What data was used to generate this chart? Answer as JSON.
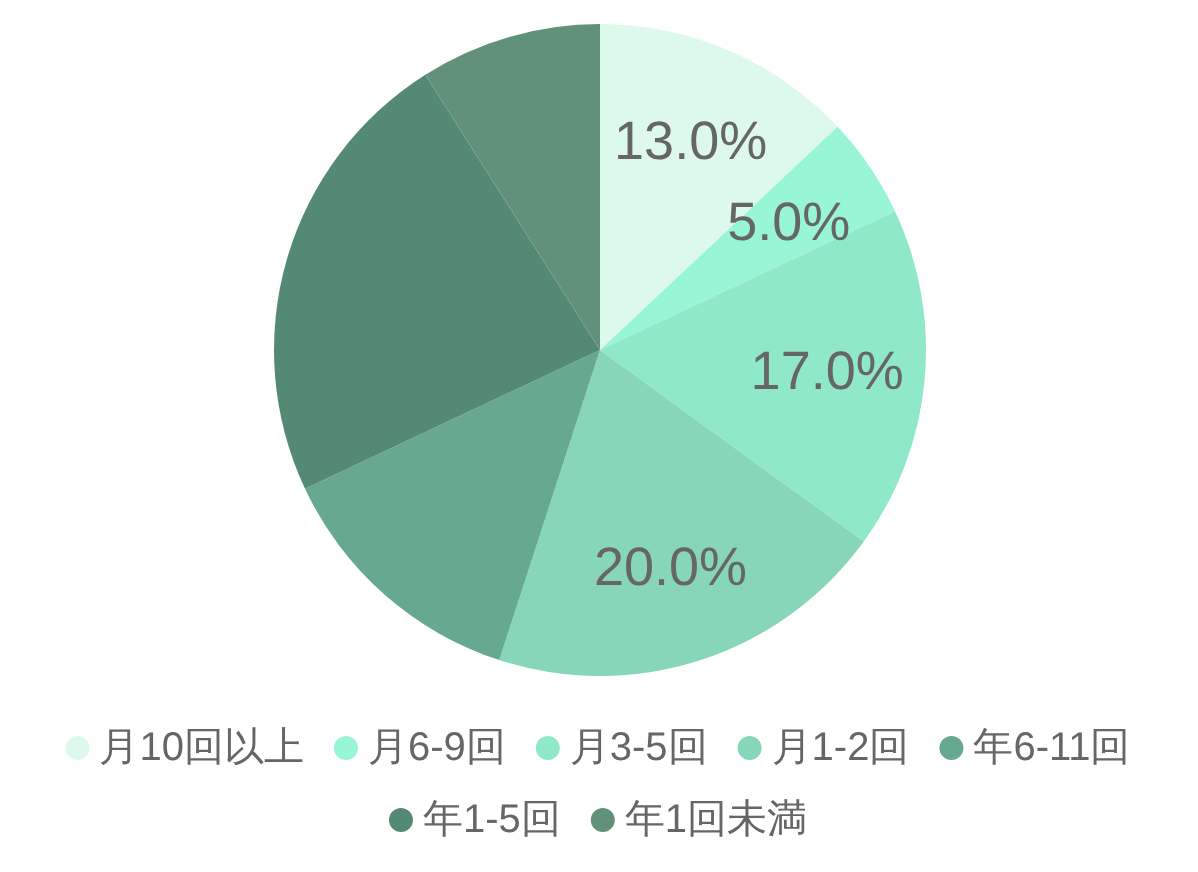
{
  "chart_data": {
    "type": "pie",
    "categories": [
      "月10回以上",
      "月6-9回",
      "月3-5回",
      "月1-2回",
      "年6-11回",
      "年1-5回",
      "年1回未満"
    ],
    "values": [
      13,
      5,
      17,
      20,
      13,
      23,
      9
    ],
    "colors": [
      "#ddf9ec",
      "#98f5d5",
      "#8fe9c8",
      "#86d6b7",
      "#67a890",
      "#548a74",
      "#62917b"
    ],
    "value_labels": [
      "13.0%",
      "5.0%",
      "17.0%",
      "20.0%",
      null,
      null,
      null
    ],
    "legend": "bottom"
  }
}
